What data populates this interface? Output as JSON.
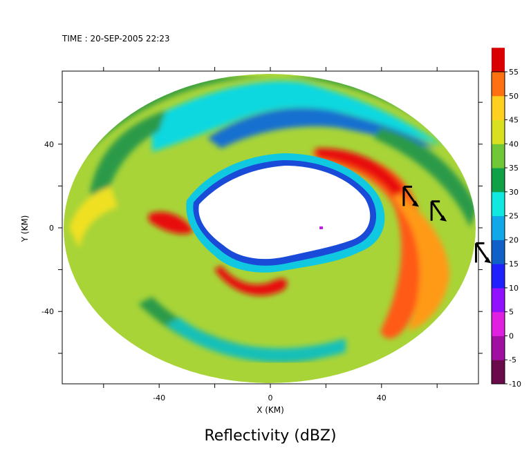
{
  "header": {
    "time_label": "TIME : 20-SEP-2005 22:23"
  },
  "chart_data": {
    "type": "heatmap",
    "title": "Reflectivity (dBZ)",
    "xlabel": "X (KM)",
    "ylabel": "Y (KM)",
    "xlim": [
      -75,
      75
    ],
    "ylim": [
      -75,
      75
    ],
    "x_ticks": [
      -40,
      0,
      40
    ],
    "y_ticks": [
      40,
      0,
      -40
    ],
    "grid": false,
    "colorbar": {
      "min": -10,
      "max": 55,
      "step": 5,
      "labels": [
        "55",
        "50",
        "45",
        "40",
        "35",
        "30",
        "25",
        "20",
        "15",
        "10",
        "5",
        "0",
        "-5",
        "-10"
      ],
      "bands": [
        {
          "value": -10,
          "color": "#6a0a4a"
        },
        {
          "value": -5,
          "color": "#a010a0"
        },
        {
          "value": 0,
          "color": "#e020e0"
        },
        {
          "value": 5,
          "color": "#9010ff"
        },
        {
          "value": 10,
          "color": "#2020ff"
        },
        {
          "value": 15,
          "color": "#1060c8"
        },
        {
          "value": 20,
          "color": "#10a8e8"
        },
        {
          "value": 25,
          "color": "#10e8e0"
        },
        {
          "value": 30,
          "color": "#10a048"
        },
        {
          "value": 35,
          "color": "#70c838"
        },
        {
          "value": 40,
          "color": "#d8e020"
        },
        {
          "value": 45,
          "color": "#ffd020"
        },
        {
          "value": 50,
          "color": "#ff7010"
        },
        {
          "value": 55,
          "color": "#d80000"
        },
        {
          "value": 60,
          "color": "#6a0000"
        }
      ]
    },
    "wind_barbs": [
      {
        "x": 48,
        "y": 15
      },
      {
        "x": 58,
        "y": 8
      },
      {
        "x": 74,
        "y": -12
      }
    ]
  }
}
